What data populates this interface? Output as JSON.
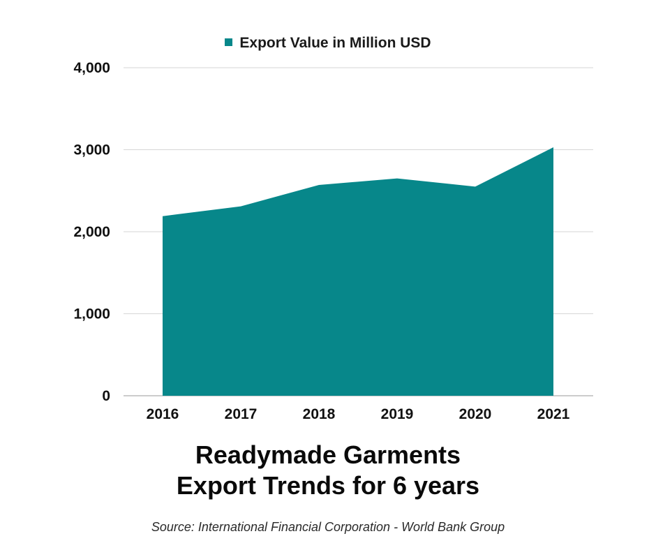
{
  "chart_data": {
    "type": "area",
    "categories": [
      "2016",
      "2017",
      "2018",
      "2019",
      "2020",
      "2021"
    ],
    "series": [
      {
        "name": "Export Value in Million USD",
        "values": [
          2190,
          2310,
          2570,
          2650,
          2550,
          3030
        ],
        "color": "#07878a"
      }
    ],
    "y_ticks": [
      "0",
      "1,000",
      "2,000",
      "3,000",
      "4,000"
    ],
    "ylim": [
      0,
      4000
    ],
    "grid": true,
    "legend_position": "top",
    "title_lines": [
      "Readymade Garments",
      "Export Trends for  6 years"
    ],
    "source": "Source: International Financial Corporation - World Bank Group"
  }
}
